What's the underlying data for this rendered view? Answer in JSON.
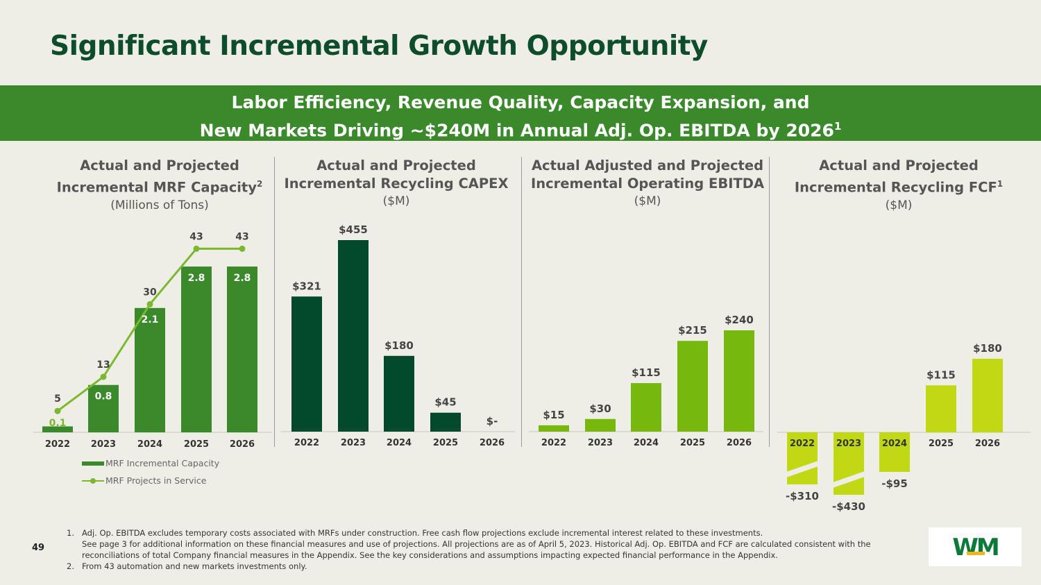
{
  "title": "Significant Incremental Growth Opportunity",
  "banner": {
    "line1": "Labor Efficiency, Revenue Quality, Capacity Expansion, and",
    "line2": "New Markets Driving ~$240M in Annual Adj. Op. EBITDA by 2026",
    "line2_sup": "1"
  },
  "colors": {
    "dark_green": "#0d4d2c",
    "banner_green": "#3a8a2c",
    "capex_green": "#034a2c",
    "ebitda_green": "#77b80f",
    "fcf_green": "#c0d914",
    "line_green": "#7cb82f"
  },
  "chart_data": [
    {
      "type": "bar",
      "title_line1": "Actual and Projected",
      "title_line2": "Incremental MRF Capacity",
      "title_sup": "2",
      "unit": "(Millions of Tons)",
      "categories": [
        "2022",
        "2023",
        "2024",
        "2025",
        "2026"
      ],
      "series": [
        {
          "name": "MRF Incremental Capacity",
          "type": "bar",
          "values": [
            0.1,
            0.8,
            2.1,
            2.8,
            2.8
          ],
          "labels": [
            "0.1",
            "0.8",
            "2.1",
            "2.8",
            "2.8"
          ]
        },
        {
          "name": "MRF Projects in Service",
          "type": "line",
          "values": [
            5,
            13,
            30,
            43,
            43
          ],
          "labels": [
            "5",
            "13",
            "30",
            "43",
            "43"
          ]
        }
      ],
      "ylim": [
        0,
        3.0
      ],
      "line_ylim": [
        0,
        52
      ]
    },
    {
      "type": "bar",
      "title_line1": "Actual and Projected",
      "title_line2": "Incremental Recycling CAPEX",
      "unit": "($M)",
      "categories": [
        "2022",
        "2023",
        "2024",
        "2025",
        "2026"
      ],
      "values": [
        321,
        455,
        180,
        45,
        0
      ],
      "labels": [
        "$321",
        "$455",
        "$180",
        "$45",
        "$-"
      ],
      "ylim": [
        0,
        460
      ]
    },
    {
      "type": "bar",
      "title_line1": "Actual Adjusted and Projected",
      "title_line2": "Incremental Operating EBITDA",
      "unit": "($M)",
      "categories": [
        "2022",
        "2023",
        "2024",
        "2025",
        "2026"
      ],
      "values": [
        15,
        30,
        115,
        215,
        240
      ],
      "labels": [
        "$15",
        "$30",
        "$115",
        "$215",
        "$240"
      ],
      "ylim": [
        0,
        460
      ]
    },
    {
      "type": "bar",
      "title_line1": "Actual and Projected",
      "title_line2": "Incremental Recycling FCF",
      "title_sup": "1",
      "unit": "($M)",
      "categories": [
        "2022",
        "2023",
        "2024",
        "2025",
        "2026"
      ],
      "values": [
        -310,
        -430,
        -95,
        115,
        180
      ],
      "labels": [
        "-$310",
        "-$430",
        "-$95",
        "$115",
        "$180"
      ],
      "broken_axis": true
    }
  ],
  "footnotes": [
    {
      "num": "1.",
      "lines": [
        "Adj. Op. EBITDA excludes temporary costs associated with MRFs under construction. Free cash flow projections exclude incremental interest related to these investments.",
        "See page 3 for additional information on these financial measures and use of projections. All projections are as of April 5, 2023. Historical Adj. Op. EBITDA and FCF are calculated consistent with the reconciliations of total Company financial measures in the Appendix. See the key considerations and assumptions impacting expected financial performance in the Appendix."
      ]
    },
    {
      "num": "2.",
      "lines": [
        "From 43 automation and new markets investments only."
      ]
    }
  ],
  "page_number": "49",
  "logo_text": "WM"
}
